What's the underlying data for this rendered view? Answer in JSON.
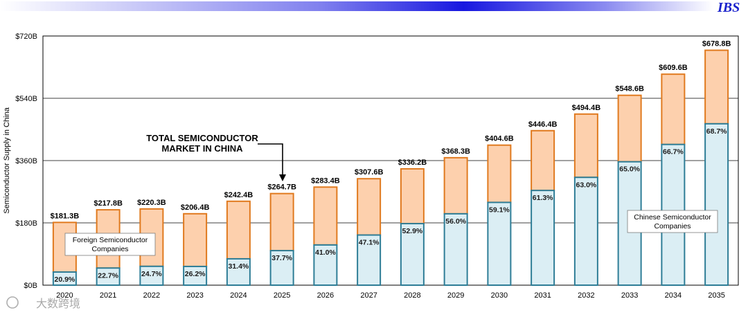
{
  "header": {
    "logo": "IBS",
    "banner_colors": [
      "#ffffff",
      "#2020e0",
      "#ffffff"
    ]
  },
  "watermark": "大数跨境",
  "chart_data": {
    "type": "bar",
    "stacked": true,
    "ylabel": "Semiconductor Supply in China",
    "ylim": [
      0,
      720
    ],
    "yticks": [
      "$0B",
      "$180B",
      "$360B",
      "$540B",
      "$720B"
    ],
    "ytick_values": [
      0,
      180,
      360,
      540,
      720
    ],
    "grid": true,
    "categories": [
      "2020",
      "2021",
      "2022",
      "2023",
      "2024",
      "2025",
      "2026",
      "2027",
      "2028",
      "2029",
      "2030",
      "2031",
      "2032",
      "2033",
      "2034",
      "2035"
    ],
    "totals": [
      181.3,
      217.8,
      220.3,
      206.4,
      242.4,
      264.7,
      283.4,
      307.6,
      336.2,
      368.3,
      404.6,
      446.4,
      494.4,
      548.6,
      609.6,
      678.8
    ],
    "total_labels": [
      "$181.3B",
      "$217.8B",
      "$220.3B",
      "$206.4B",
      "$242.4B",
      "$264.7B",
      "$283.4B",
      "$307.6B",
      "$336.2B",
      "$368.3B",
      "$404.6B",
      "$446.4B",
      "$494.4B",
      "$548.6B",
      "$609.6B",
      "$678.8B"
    ],
    "chinese_share_pct": [
      20.9,
      22.7,
      24.7,
      26.2,
      31.4,
      37.7,
      41.0,
      47.1,
      52.9,
      56.0,
      59.1,
      61.3,
      63.0,
      65.0,
      66.7,
      68.7
    ],
    "share_labels": [
      "20.9%",
      "22.7%",
      "24.7%",
      "26.2%",
      "31.4%",
      "37.7%",
      "41.0%",
      "47.1%",
      "52.9%",
      "56.0%",
      "59.1%",
      "61.3%",
      "63.0%",
      "65.0%",
      "66.7%",
      "68.7%"
    ],
    "series": [
      {
        "name": "Chinese Semiconductor Companies",
        "color": "#dbeef4",
        "stroke": "#2e7d96"
      },
      {
        "name": "Foreign Semiconductor Companies",
        "color": "#fdd0ad",
        "stroke": "#e07a1f"
      }
    ],
    "legend": {
      "foreign_lines": [
        "Foreign Semiconductor",
        "Companies"
      ],
      "chinese_lines": [
        "Chinese Semiconductor",
        "Companies"
      ]
    },
    "annotation": {
      "lines": [
        "TOTAL SEMICONDUCTOR",
        "MARKET IN CHINA"
      ],
      "target_year": "2025"
    }
  }
}
